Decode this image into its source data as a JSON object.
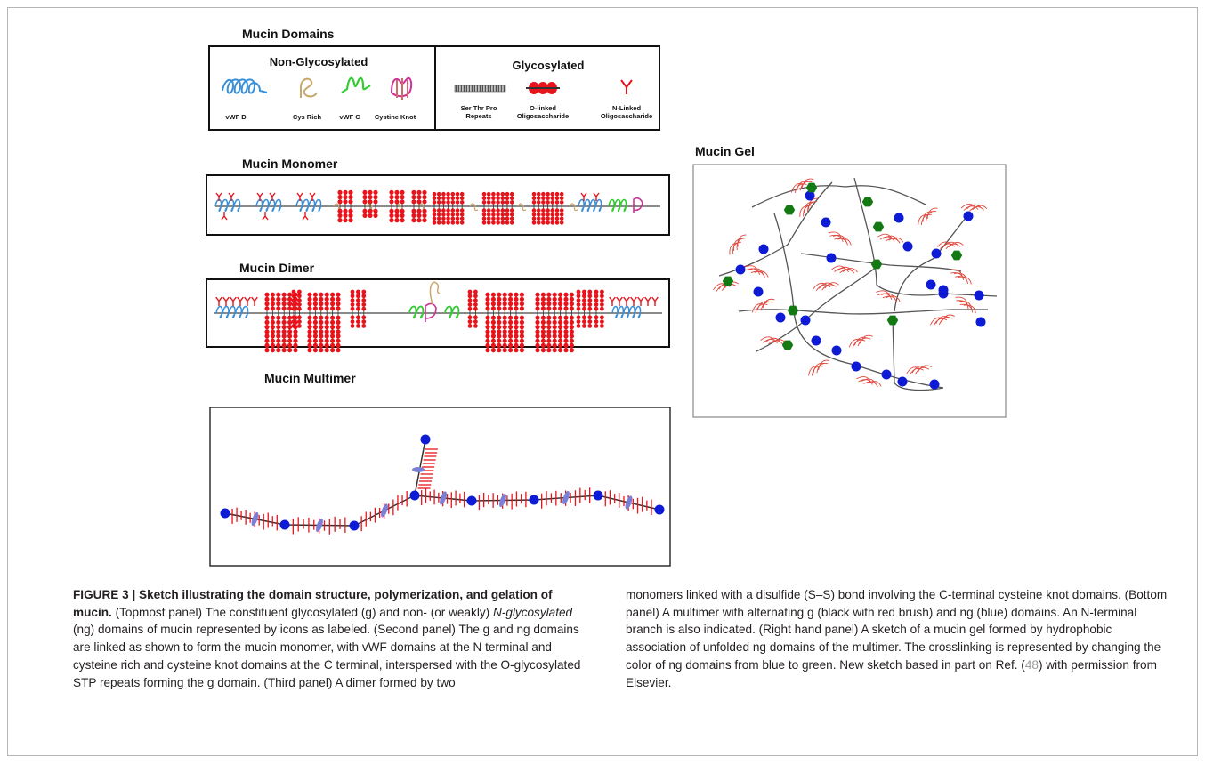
{
  "figure": {
    "panels": {
      "domains": {
        "title": "Mucin Domains",
        "non_glycosylated": {
          "heading": "Non-Glycosylated",
          "items": [
            "vWF D",
            "Cys Rich",
            "vWF C",
            "Cystine Knot"
          ]
        },
        "glycosylated": {
          "heading": "Glycosylated",
          "items": [
            {
              "line1": "Ser Thr Pro",
              "line2": "Repeats"
            },
            {
              "line1": "O-linked",
              "line2": "Oligosaccharide"
            },
            {
              "line1": "N-Linked",
              "line2": "Oligosaccharide"
            }
          ]
        }
      },
      "monomer": {
        "title": "Mucin Monomer"
      },
      "dimer": {
        "title": "Mucin Dimer"
      },
      "multimer": {
        "title": "Mucin Multimer"
      },
      "gel": {
        "title": "Mucin Gel"
      }
    },
    "colors": {
      "vwf_d": "#3b8fd6",
      "cys_rich": "#c8a96a",
      "vwf_c": "#33cc33",
      "cystine_knot": "#cc3399",
      "oligosaccharide": "#e8141b",
      "ng_blue": "#0d1bd6",
      "gel_green": "#137a13",
      "brush_red": "#e0473d",
      "backbone": "#333333",
      "multimer_link": "#7b80d6"
    }
  },
  "caption": {
    "label": "FIGURE 3 | Sketch illustrating the domain structure, polymerization, and gelation of mucin.",
    "s1": " (Topmost panel) The constituent glycosylated (g) and non- (or weakly) ",
    "s1_italic": "N-glycosylated",
    "s2": " (ng) domains of mucin represented by icons as labeled. (Second panel) The g and ng domains are linked as shown to form the mucin monomer, with vWF domains at the N terminal and cysteine rich and cysteine knot domains at the C terminal, interspersed with the O-glycosylated STP repeats forming the g domain. (Third panel) A dimer formed by two",
    "r1": "monomers linked with a disulfide (S–S) bond involving the C-terminal cysteine knot domains. (Bottom panel) A multimer with alternating g (black with red brush) and ng (blue) domains. An N-terminal branch is also indicated. (Right hand panel) A sketch of a mucin gel formed by hydrophobic association of unfolded ng domains of the multimer. The crosslinking is represented by changing the color of ng domains from blue to green. New sketch based in part on Ref. (",
    "ref": "48",
    "r2": ") with permission from Elsevier."
  }
}
